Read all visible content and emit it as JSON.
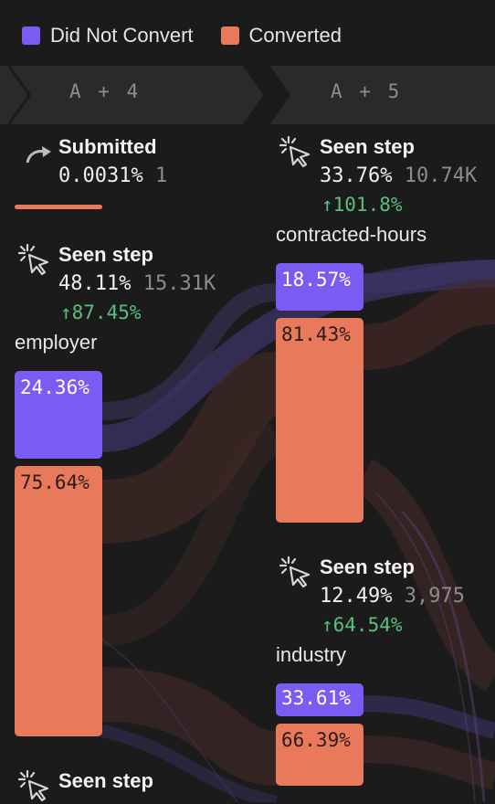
{
  "legend": [
    {
      "label": "Did Not Convert",
      "color": "#7b5cf3"
    },
    {
      "label": "Converted",
      "color": "#e8795a"
    }
  ],
  "steps": [
    {
      "label": "A + 4"
    },
    {
      "label": "A + 5"
    }
  ],
  "nodes": {
    "submitted": {
      "icon": "redo-arrow-icon",
      "title": "Submitted",
      "pct": "0.0031%",
      "count": "1"
    },
    "employer": {
      "icon": "pointer-click-icon",
      "title": "Seen step",
      "pct": "48.11%",
      "count": "15.31K",
      "delta": "↑87.45%",
      "attr": "employer",
      "bars": {
        "not_converted": "24.36%",
        "converted": "75.64%"
      }
    },
    "contracted_hours": {
      "icon": "pointer-click-icon",
      "title": "Seen step",
      "pct": "33.76%",
      "count": "10.74K",
      "delta": "↑101.8%",
      "attr": "contracted-hours",
      "bars": {
        "not_converted": "18.57%",
        "converted": "81.43%"
      }
    },
    "industry": {
      "icon": "pointer-click-icon",
      "title": "Seen step",
      "pct": "12.49%",
      "count": "3,975",
      "delta": "↑64.54%",
      "attr": "industry",
      "bars": {
        "not_converted": "33.61%",
        "converted": "66.39%"
      }
    },
    "bottom": {
      "icon": "pointer-click-icon",
      "title": "Seen step"
    }
  }
}
